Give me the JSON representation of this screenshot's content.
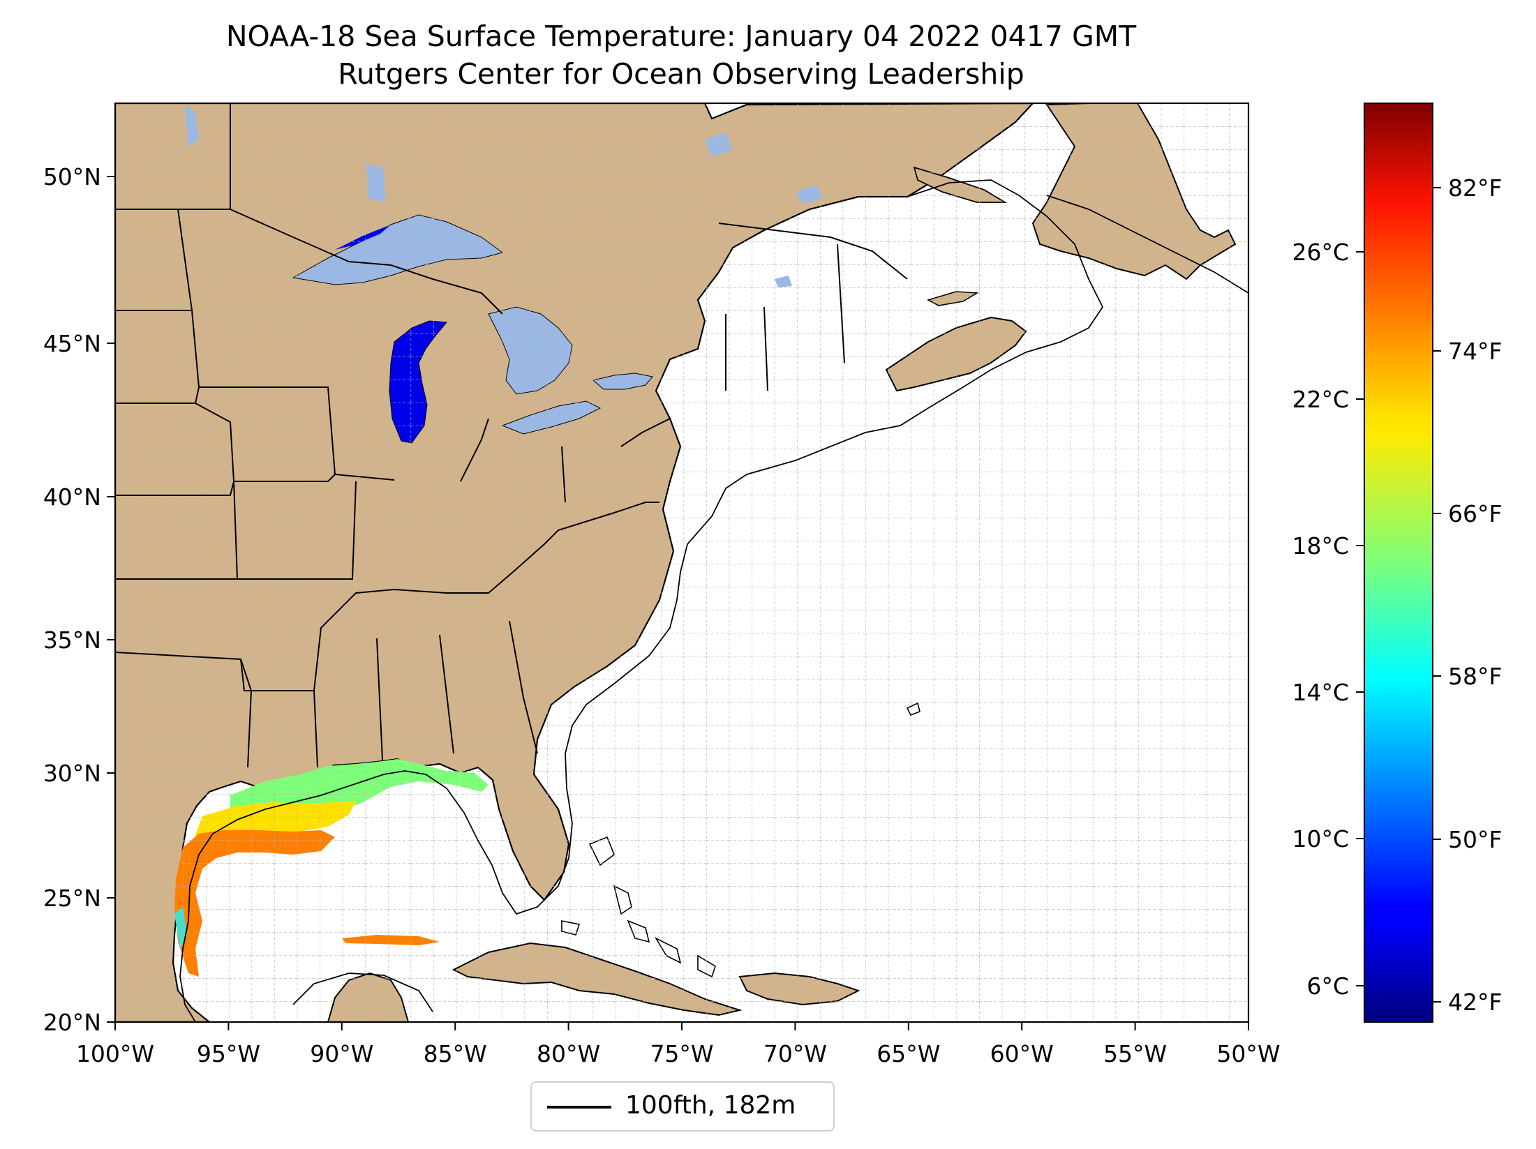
{
  "title": {
    "line1": "NOAA-18 Sea Surface Temperature: January 04 2022 0417 GMT",
    "line2": "Rutgers Center for Ocean Observing Leadership"
  },
  "map": {
    "lon_range": [
      -100,
      -50
    ],
    "lat_range": [
      20,
      52.3
    ],
    "lon_ticks": [
      "100°W",
      "95°W",
      "90°W",
      "85°W",
      "80°W",
      "75°W",
      "70°W",
      "65°W",
      "60°W",
      "55°W",
      "50°W"
    ],
    "lat_ticks": [
      "20°N",
      "25°N",
      "30°N",
      "35°N",
      "40°N",
      "45°N",
      "50°N"
    ],
    "gridlines": true,
    "land_color": "#d2b48c",
    "lake_color": "#9bb7e4",
    "bathymetry_contour": "100 fathom (182 m)"
  },
  "colorbar": {
    "colormap": "jet",
    "celsius_ticks": [
      "6°C",
      "10°C",
      "14°C",
      "18°C",
      "22°C",
      "26°C"
    ],
    "fahrenheit_ticks": [
      "42°F",
      "50°F",
      "58°F",
      "66°F",
      "74°F",
      "82°F"
    ]
  },
  "legend": {
    "label": "100fth, 182m"
  }
}
